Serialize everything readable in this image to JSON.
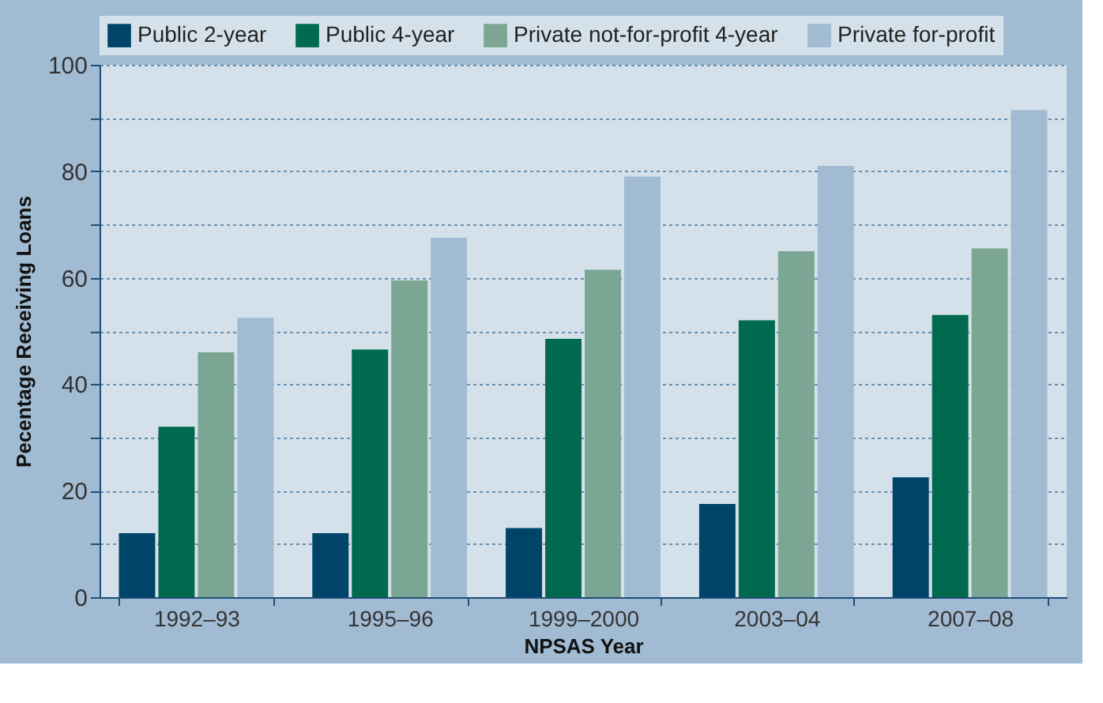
{
  "chart_data": {
    "type": "bar",
    "xlabel": "NPSAS Year",
    "ylabel": "Pecentage Receiving Loans",
    "categories": [
      "1992–93",
      "1995–96",
      "1999–2000",
      "2003–04",
      "2007–08"
    ],
    "series": [
      {
        "name": "Public 2-year",
        "color": "#00446a",
        "values": [
          12,
          12,
          13,
          17.5,
          22.5
        ]
      },
      {
        "name": "Public 4-year",
        "color": "#006a4e",
        "values": [
          32,
          46.5,
          48.5,
          52,
          53
        ]
      },
      {
        "name": "Private not-for-profit 4-year",
        "color": "#7aa693",
        "values": [
          46,
          59.5,
          61.5,
          65,
          65.5
        ]
      },
      {
        "name": "Private for-profit",
        "color": "#a0bbd2",
        "values": [
          52.5,
          67.5,
          79,
          81,
          91.5
        ]
      }
    ],
    "ylim": [
      0,
      100
    ],
    "yticks": [
      0,
      {
        "value": 10,
        "label": null
      },
      20,
      {
        "value": 30,
        "label": null
      },
      40,
      {
        "value": 50,
        "label": null
      },
      60,
      {
        "value": 70,
        "label": null
      },
      80,
      {
        "value": 90,
        "label": null
      },
      100
    ],
    "grid": "y",
    "legend": "top"
  }
}
